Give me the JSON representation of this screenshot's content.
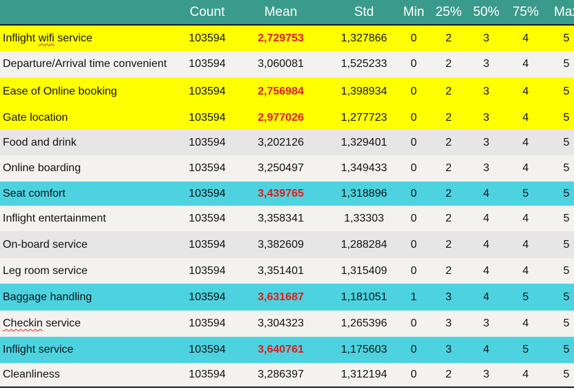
{
  "colors": {
    "header_bg": "#3a9a8c",
    "yellow": "#ffff00",
    "cyan": "#4dd3e0",
    "light_gray": "#e6e6e6",
    "off_white": "#f3f2ee",
    "highlight_text": "#e01b1b"
  },
  "header": {
    "blank": "",
    "count": "Count",
    "mean": "Mean",
    "std": "Std",
    "min": "Min",
    "p25": "25%",
    "p50": "50%",
    "p75": "75%",
    "max": "Max"
  },
  "rows": [
    {
      "label": "Inflight wifi service",
      "count": "103594",
      "mean": "2,729753",
      "std": "1,327866",
      "min": "0",
      "p25": "2",
      "p50": "3",
      "p75": "4",
      "max": "5",
      "highlight": "yellow",
      "mean_red": true
    },
    {
      "label": "Departure/Arrival time convenient",
      "count": "103594",
      "mean": "3,060081",
      "std": "1,525233",
      "min": "0",
      "p25": "2",
      "p50": "3",
      "p75": "4",
      "max": "5",
      "highlight": "off_white",
      "mean_red": false
    },
    {
      "label": "Ease of Online booking",
      "count": "103594",
      "mean": "2,756984",
      "std": "1,398934",
      "min": "0",
      "p25": "2",
      "p50": "3",
      "p75": "4",
      "max": "5",
      "highlight": "yellow",
      "mean_red": true
    },
    {
      "label": "Gate location",
      "count": "103594",
      "mean": "2,977026",
      "std": "1,277723",
      "min": "0",
      "p25": "2",
      "p50": "3",
      "p75": "4",
      "max": "5",
      "highlight": "yellow",
      "mean_red": true
    },
    {
      "label": "Food and drink",
      "count": "103594",
      "mean": "3,202126",
      "std": "1,329401",
      "min": "0",
      "p25": "2",
      "p50": "3",
      "p75": "4",
      "max": "5",
      "highlight": "light_gray",
      "mean_red": false
    },
    {
      "label": "Online boarding",
      "count": "103594",
      "mean": "3,250497",
      "std": "1,349433",
      "min": "0",
      "p25": "2",
      "p50": "3",
      "p75": "4",
      "max": "5",
      "highlight": "off_white",
      "mean_red": false
    },
    {
      "label": "Seat comfort",
      "count": "103594",
      "mean": "3,439765",
      "std": "1,318896",
      "min": "0",
      "p25": "2",
      "p50": "4",
      "p75": "5",
      "max": "5",
      "highlight": "cyan",
      "mean_red": true
    },
    {
      "label": "Inflight entertainment",
      "count": "103594",
      "mean": "3,358341",
      "std": "1,33303",
      "min": "0",
      "p25": "2",
      "p50": "4",
      "p75": "4",
      "max": "5",
      "highlight": "off_white",
      "mean_red": false
    },
    {
      "label": "On-board service",
      "count": "103594",
      "mean": "3,382609",
      "std": "1,288284",
      "min": "0",
      "p25": "2",
      "p50": "4",
      "p75": "4",
      "max": "5",
      "highlight": "light_gray",
      "mean_red": false
    },
    {
      "label": "Leg room service",
      "count": "103594",
      "mean": "3,351401",
      "std": "1,315409",
      "min": "0",
      "p25": "2",
      "p50": "4",
      "p75": "4",
      "max": "5",
      "highlight": "off_white",
      "mean_red": false
    },
    {
      "label": "Baggage handling",
      "count": "103594",
      "mean": "3,631687",
      "std": "1,181051",
      "min": "1",
      "p25": "3",
      "p50": "4",
      "p75": "5",
      "max": "5",
      "highlight": "cyan",
      "mean_red": true
    },
    {
      "label": "Checkin service",
      "count": "103594",
      "mean": "3,304323",
      "std": "1,265396",
      "min": "0",
      "p25": "3",
      "p50": "3",
      "p75": "4",
      "max": "5",
      "highlight": "off_white",
      "mean_red": false
    },
    {
      "label": "Inflight service",
      "count": "103594",
      "mean": "3,640761",
      "std": "1,175603",
      "min": "0",
      "p25": "3",
      "p50": "4",
      "p75": "5",
      "max": "5",
      "highlight": "cyan",
      "mean_red": true
    },
    {
      "label": "Cleanliness",
      "count": "103594",
      "mean": "3,286397",
      "std": "1,312194",
      "min": "0",
      "p25": "2",
      "p50": "3",
      "p75": "4",
      "max": "5",
      "highlight": "off_white",
      "mean_red": false
    }
  ]
}
